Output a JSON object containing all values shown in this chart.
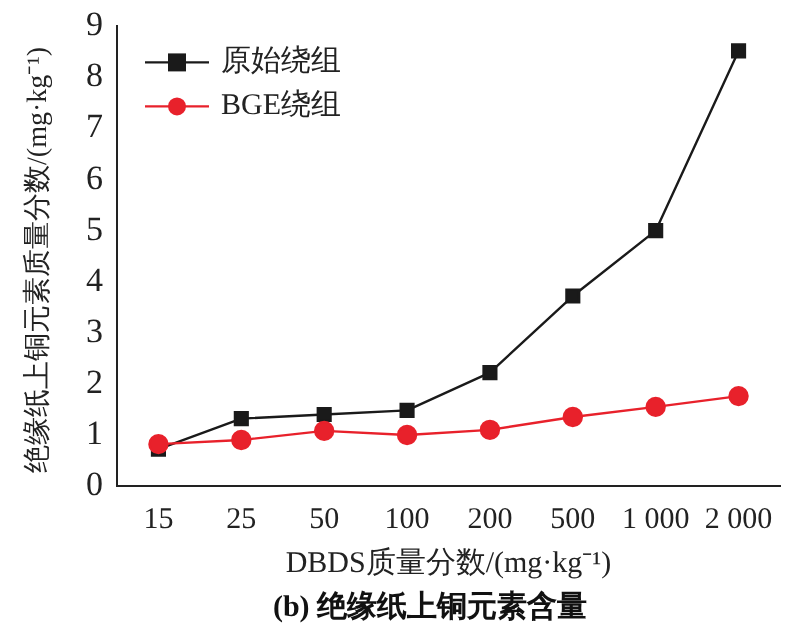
{
  "chart_data": {
    "type": "line",
    "title": "(b) 绝缘纸上铜元素含量",
    "xlabel": "DBDS质量分数/(mg·kg⁻¹)",
    "ylabel": "绝缘纸上铜元素质量分数/(mg·kg⁻¹)",
    "categories": [
      "15",
      "25",
      "50",
      "100",
      "200",
      "500",
      "1 000",
      "2 000"
    ],
    "series": [
      {
        "name": "原始绕组",
        "color": "#1a1a1a",
        "marker": "square",
        "values": [
          0.72,
          1.32,
          1.4,
          1.48,
          2.22,
          3.72,
          5.0,
          8.52
        ]
      },
      {
        "name": "BGE绕组",
        "color": "#e8212b",
        "marker": "circle",
        "values": [
          0.82,
          0.9,
          1.08,
          1.0,
          1.1,
          1.35,
          1.55,
          1.76
        ]
      }
    ],
    "ylim": [
      0,
      9
    ],
    "yticks": [
      0,
      1,
      2,
      3,
      4,
      5,
      6,
      7,
      8,
      9
    ],
    "grid": false,
    "legend": "top left",
    "line_style": "solid"
  }
}
